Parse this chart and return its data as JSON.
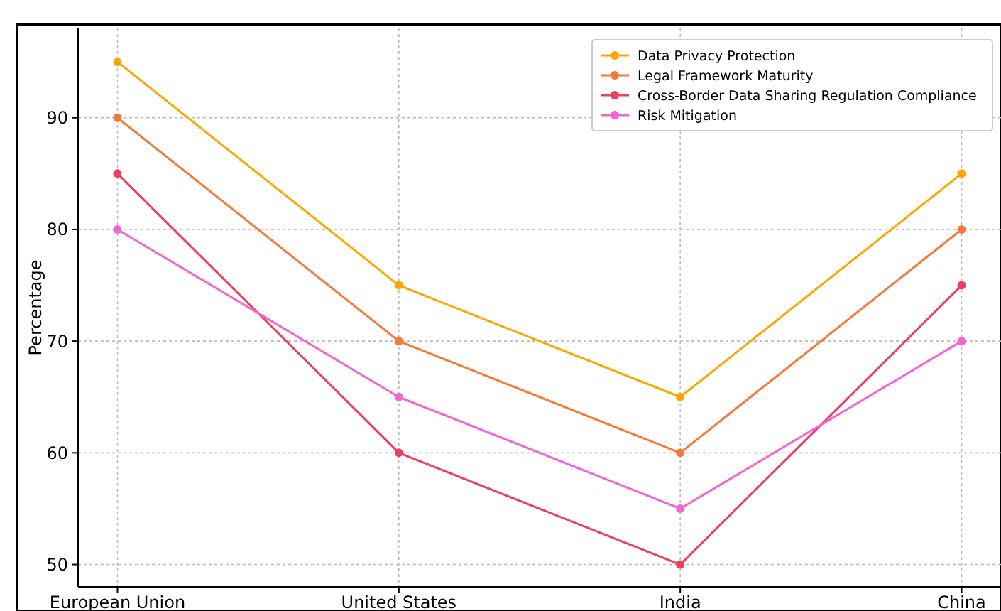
{
  "chart_data": {
    "type": "line",
    "ylabel": "Percentage",
    "categories": [
      "European Union",
      "United States",
      "India",
      "China"
    ],
    "series": [
      {
        "name": "Data Privacy Protection",
        "color": "#ffa500",
        "values": [
          95,
          75,
          65,
          85
        ]
      },
      {
        "name": "Legal Framework Maturity",
        "color": "#f47a3c",
        "values": [
          90,
          70,
          60,
          80
        ]
      },
      {
        "name": "Cross-Border Data Sharing Regulation Compliance",
        "color": "#ee3f5f",
        "values": [
          85,
          60,
          50,
          75
        ]
      },
      {
        "name": "Risk Mitigation",
        "color": "#f564d0",
        "values": [
          80,
          65,
          55,
          70
        ]
      }
    ],
    "ylim": [
      48,
      98
    ],
    "yticks": [
      50,
      60,
      70,
      80,
      90
    ],
    "grid": true,
    "legend": "top right",
    "marker": "circle",
    "line_style": "solid"
  }
}
